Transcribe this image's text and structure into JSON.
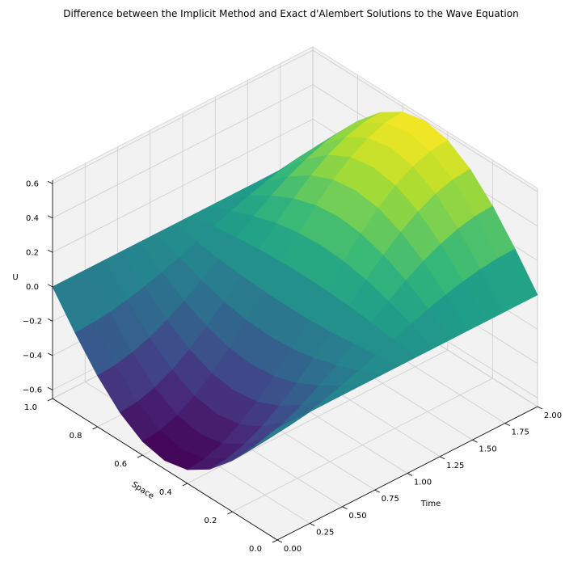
{
  "chart_data": {
    "type": "surface3d",
    "title": "Difference between the Implicit Method and Exact d'Alembert Solutions to the Wave Equation",
    "xlabel": "Time",
    "ylabel": "Space",
    "zlabel": "U",
    "xlim": [
      0,
      2
    ],
    "ylim": [
      0,
      1
    ],
    "zlim": [
      -0.65,
      0.62
    ],
    "x_ticks": [
      "0.00",
      "0.25",
      "0.50",
      "0.75",
      "1.00",
      "1.25",
      "1.50",
      "1.75",
      "2.00"
    ],
    "y_ticks": [
      "0.0",
      "0.2",
      "0.4",
      "0.6",
      "0.8",
      "1.0"
    ],
    "z_ticks": [
      "−0.6",
      "−0.4",
      "−0.2",
      "0.0",
      "0.2",
      "0.4",
      "0.6"
    ],
    "x_tick_values": [
      0,
      0.25,
      0.5,
      0.75,
      1.0,
      1.25,
      1.5,
      1.75,
      2.0
    ],
    "y_tick_values": [
      0,
      0.2,
      0.4,
      0.6,
      0.8,
      1.0
    ],
    "z_tick_values": [
      -0.6,
      -0.4,
      -0.2,
      0,
      0.2,
      0.4,
      0.6
    ],
    "colormap": "viridis",
    "grid": true,
    "view": {
      "elev_deg": 30,
      "azim_deg": -135
    },
    "surface": {
      "x_count": 16,
      "y_count": 11,
      "description": "U(t, x) = A(t) * sin(pi*x) with A(t) = -0.6 * cos(pi * t / 2)",
      "amplitude_at_time_0": -0.6,
      "amplitude_at_time_2": 0.6,
      "value_at_space_edges": 0.0
    }
  },
  "colors": {
    "pane_fill": "#f2f2f2",
    "pane_edge": "#d9d9d9",
    "grid_line": "#cccccc",
    "axis_line": "#000000"
  }
}
